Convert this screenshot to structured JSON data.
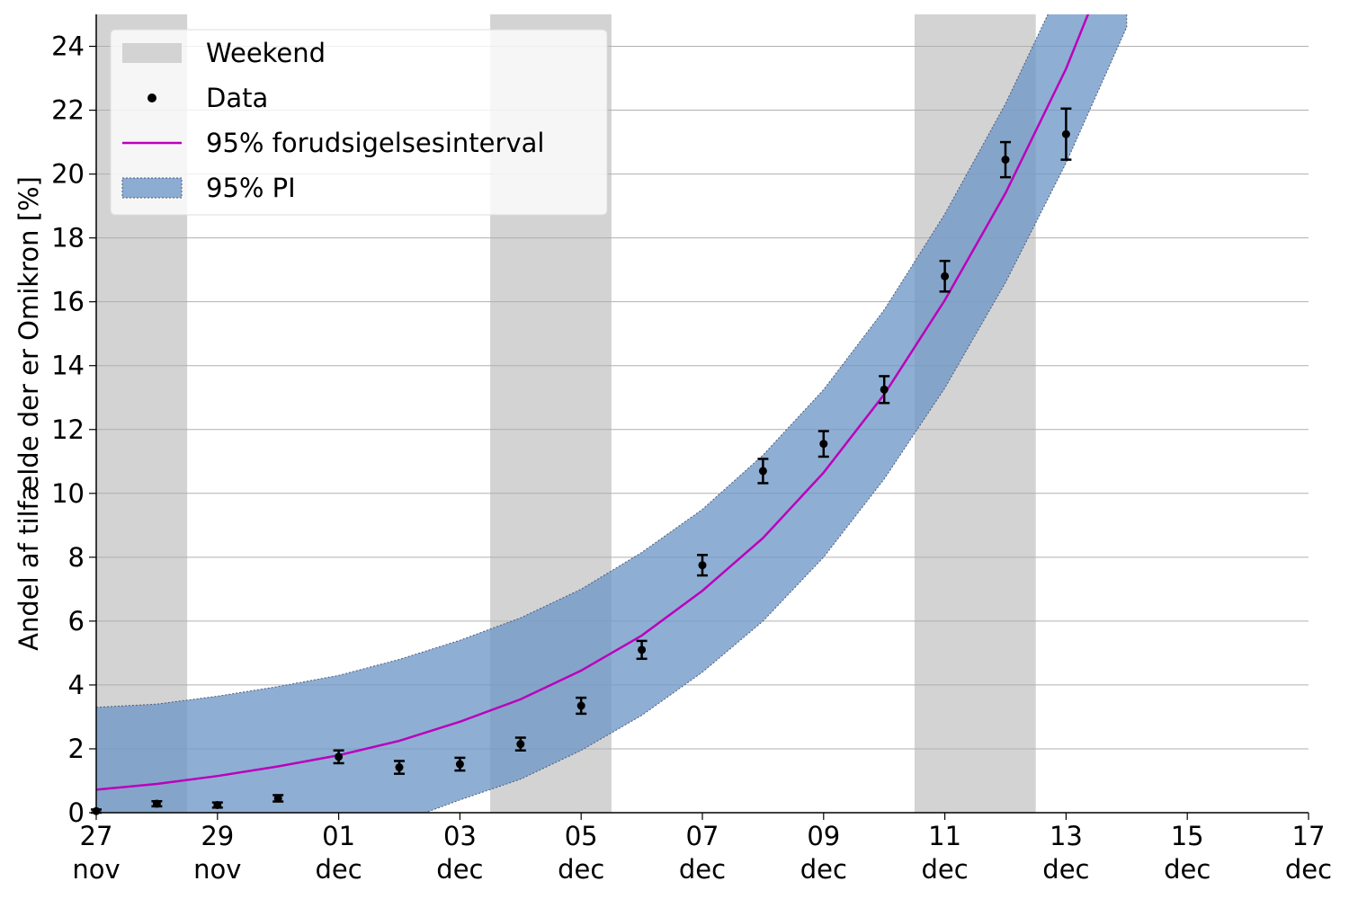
{
  "chart_data": {
    "type": "line",
    "ylabel": "Andel af tilfælde der er Omikron [%]",
    "xlabel": "",
    "ylim": [
      0,
      25
    ],
    "xlim": [
      "2021-11-27",
      "2021-12-17"
    ],
    "grid": {
      "y": true,
      "x": false
    },
    "legend_position": "top-left",
    "x_ticks": [
      {
        "date": "2021-11-27",
        "day": "27",
        "month": "nov"
      },
      {
        "date": "2021-11-29",
        "day": "29",
        "month": "nov"
      },
      {
        "date": "2021-12-01",
        "day": "01",
        "month": "dec"
      },
      {
        "date": "2021-12-03",
        "day": "03",
        "month": "dec"
      },
      {
        "date": "2021-12-05",
        "day": "05",
        "month": "dec"
      },
      {
        "date": "2021-12-07",
        "day": "07",
        "month": "dec"
      },
      {
        "date": "2021-12-09",
        "day": "09",
        "month": "dec"
      },
      {
        "date": "2021-12-11",
        "day": "11",
        "month": "dec"
      },
      {
        "date": "2021-12-13",
        "day": "13",
        "month": "dec"
      },
      {
        "date": "2021-12-15",
        "day": "15",
        "month": "dec"
      },
      {
        "date": "2021-12-17",
        "day": "17",
        "month": "dec"
      }
    ],
    "y_ticks": [
      "0",
      "2",
      "4",
      "6",
      "8",
      "10",
      "12",
      "14",
      "16",
      "18",
      "20",
      "22",
      "24"
    ],
    "weekends": [
      {
        "start": "2021-11-26 12:00",
        "end": "2021-11-28 12:00"
      },
      {
        "start": "2021-12-03 12:00",
        "end": "2021-12-05 12:00"
      },
      {
        "start": "2021-12-10 12:00",
        "end": "2021-12-12 12:00"
      }
    ],
    "data_points": [
      {
        "date": "2021-11-27",
        "value": 0.05,
        "err": 0.05
      },
      {
        "date": "2021-11-28",
        "value": 0.28,
        "err": 0.08
      },
      {
        "date": "2021-11-29",
        "value": 0.24,
        "err": 0.08
      },
      {
        "date": "2021-11-30",
        "value": 0.45,
        "err": 0.1
      },
      {
        "date": "2021-12-01",
        "value": 1.75,
        "err": 0.2
      },
      {
        "date": "2021-12-02",
        "value": 1.42,
        "err": 0.2
      },
      {
        "date": "2021-12-03",
        "value": 1.52,
        "err": 0.2
      },
      {
        "date": "2021-12-04",
        "value": 2.15,
        "err": 0.2
      },
      {
        "date": "2021-12-05",
        "value": 3.35,
        "err": 0.25
      },
      {
        "date": "2021-12-06",
        "value": 5.1,
        "err": 0.28
      },
      {
        "date": "2021-12-07",
        "value": 7.75,
        "err": 0.32
      },
      {
        "date": "2021-12-08",
        "value": 10.7,
        "err": 0.38
      },
      {
        "date": "2021-12-09",
        "value": 11.55,
        "err": 0.4
      },
      {
        "date": "2021-12-10",
        "value": 13.25,
        "err": 0.42
      },
      {
        "date": "2021-12-11",
        "value": 16.8,
        "err": 0.48
      },
      {
        "date": "2021-12-12",
        "value": 20.45,
        "err": 0.55
      },
      {
        "date": "2021-12-13",
        "value": 21.25,
        "err": 0.8
      }
    ],
    "prediction_line": [
      {
        "date": "2021-11-27",
        "value": 0.72
      },
      {
        "date": "2021-11-28",
        "value": 0.9
      },
      {
        "date": "2021-11-29",
        "value": 1.15
      },
      {
        "date": "2021-11-30",
        "value": 1.45
      },
      {
        "date": "2021-12-01",
        "value": 1.8
      },
      {
        "date": "2021-12-02",
        "value": 2.25
      },
      {
        "date": "2021-12-03",
        "value": 2.85
      },
      {
        "date": "2021-12-04",
        "value": 3.55
      },
      {
        "date": "2021-12-05",
        "value": 4.45
      },
      {
        "date": "2021-12-06",
        "value": 5.55
      },
      {
        "date": "2021-12-07",
        "value": 6.95
      },
      {
        "date": "2021-12-08",
        "value": 8.6
      },
      {
        "date": "2021-12-09",
        "value": 10.65
      },
      {
        "date": "2021-12-10",
        "value": 13.1
      },
      {
        "date": "2021-12-11",
        "value": 16.05
      },
      {
        "date": "2021-12-12",
        "value": 19.4
      },
      {
        "date": "2021-12-13",
        "value": 23.3
      },
      {
        "date": "2021-12-14",
        "value": 28.0
      }
    ],
    "pi_band": [
      {
        "date": "2021-11-27",
        "lower": -0.5,
        "upper": 3.3
      },
      {
        "date": "2021-11-28",
        "lower": -0.5,
        "upper": 3.4
      },
      {
        "date": "2021-11-29",
        "lower": -0.5,
        "upper": 3.65
      },
      {
        "date": "2021-11-30",
        "lower": -0.5,
        "upper": 3.95
      },
      {
        "date": "2021-12-01",
        "lower": -0.5,
        "upper": 4.3
      },
      {
        "date": "2021-12-02",
        "lower": -0.3,
        "upper": 4.8
      },
      {
        "date": "2021-12-03",
        "lower": 0.4,
        "upper": 5.4
      },
      {
        "date": "2021-12-04",
        "lower": 1.05,
        "upper": 6.1
      },
      {
        "date": "2021-12-05",
        "lower": 1.95,
        "upper": 7.0
      },
      {
        "date": "2021-12-06",
        "lower": 3.05,
        "upper": 8.15
      },
      {
        "date": "2021-12-07",
        "lower": 4.4,
        "upper": 9.5
      },
      {
        "date": "2021-12-08",
        "lower": 6.0,
        "upper": 11.2
      },
      {
        "date": "2021-12-09",
        "lower": 8.0,
        "upper": 13.25
      },
      {
        "date": "2021-12-10",
        "lower": 10.45,
        "upper": 15.75
      },
      {
        "date": "2021-12-11",
        "lower": 13.3,
        "upper": 18.75
      },
      {
        "date": "2021-12-12",
        "lower": 16.6,
        "upper": 22.2
      },
      {
        "date": "2021-12-13",
        "lower": 20.35,
        "upper": 26.2
      },
      {
        "date": "2021-12-14",
        "lower": 24.6,
        "upper": 30.8
      }
    ],
    "legend": [
      {
        "key": "weekend",
        "label": "Weekend"
      },
      {
        "key": "data",
        "label": "Data"
      },
      {
        "key": "line",
        "label": "95% forudsigelsesinterval"
      },
      {
        "key": "band",
        "label": "95% PI"
      }
    ],
    "colors": {
      "weekend": "#d3d3d3",
      "band": "#6f97c8",
      "line": "#bb00bb",
      "data": "#000000",
      "grid": "#b0b0b0"
    }
  }
}
